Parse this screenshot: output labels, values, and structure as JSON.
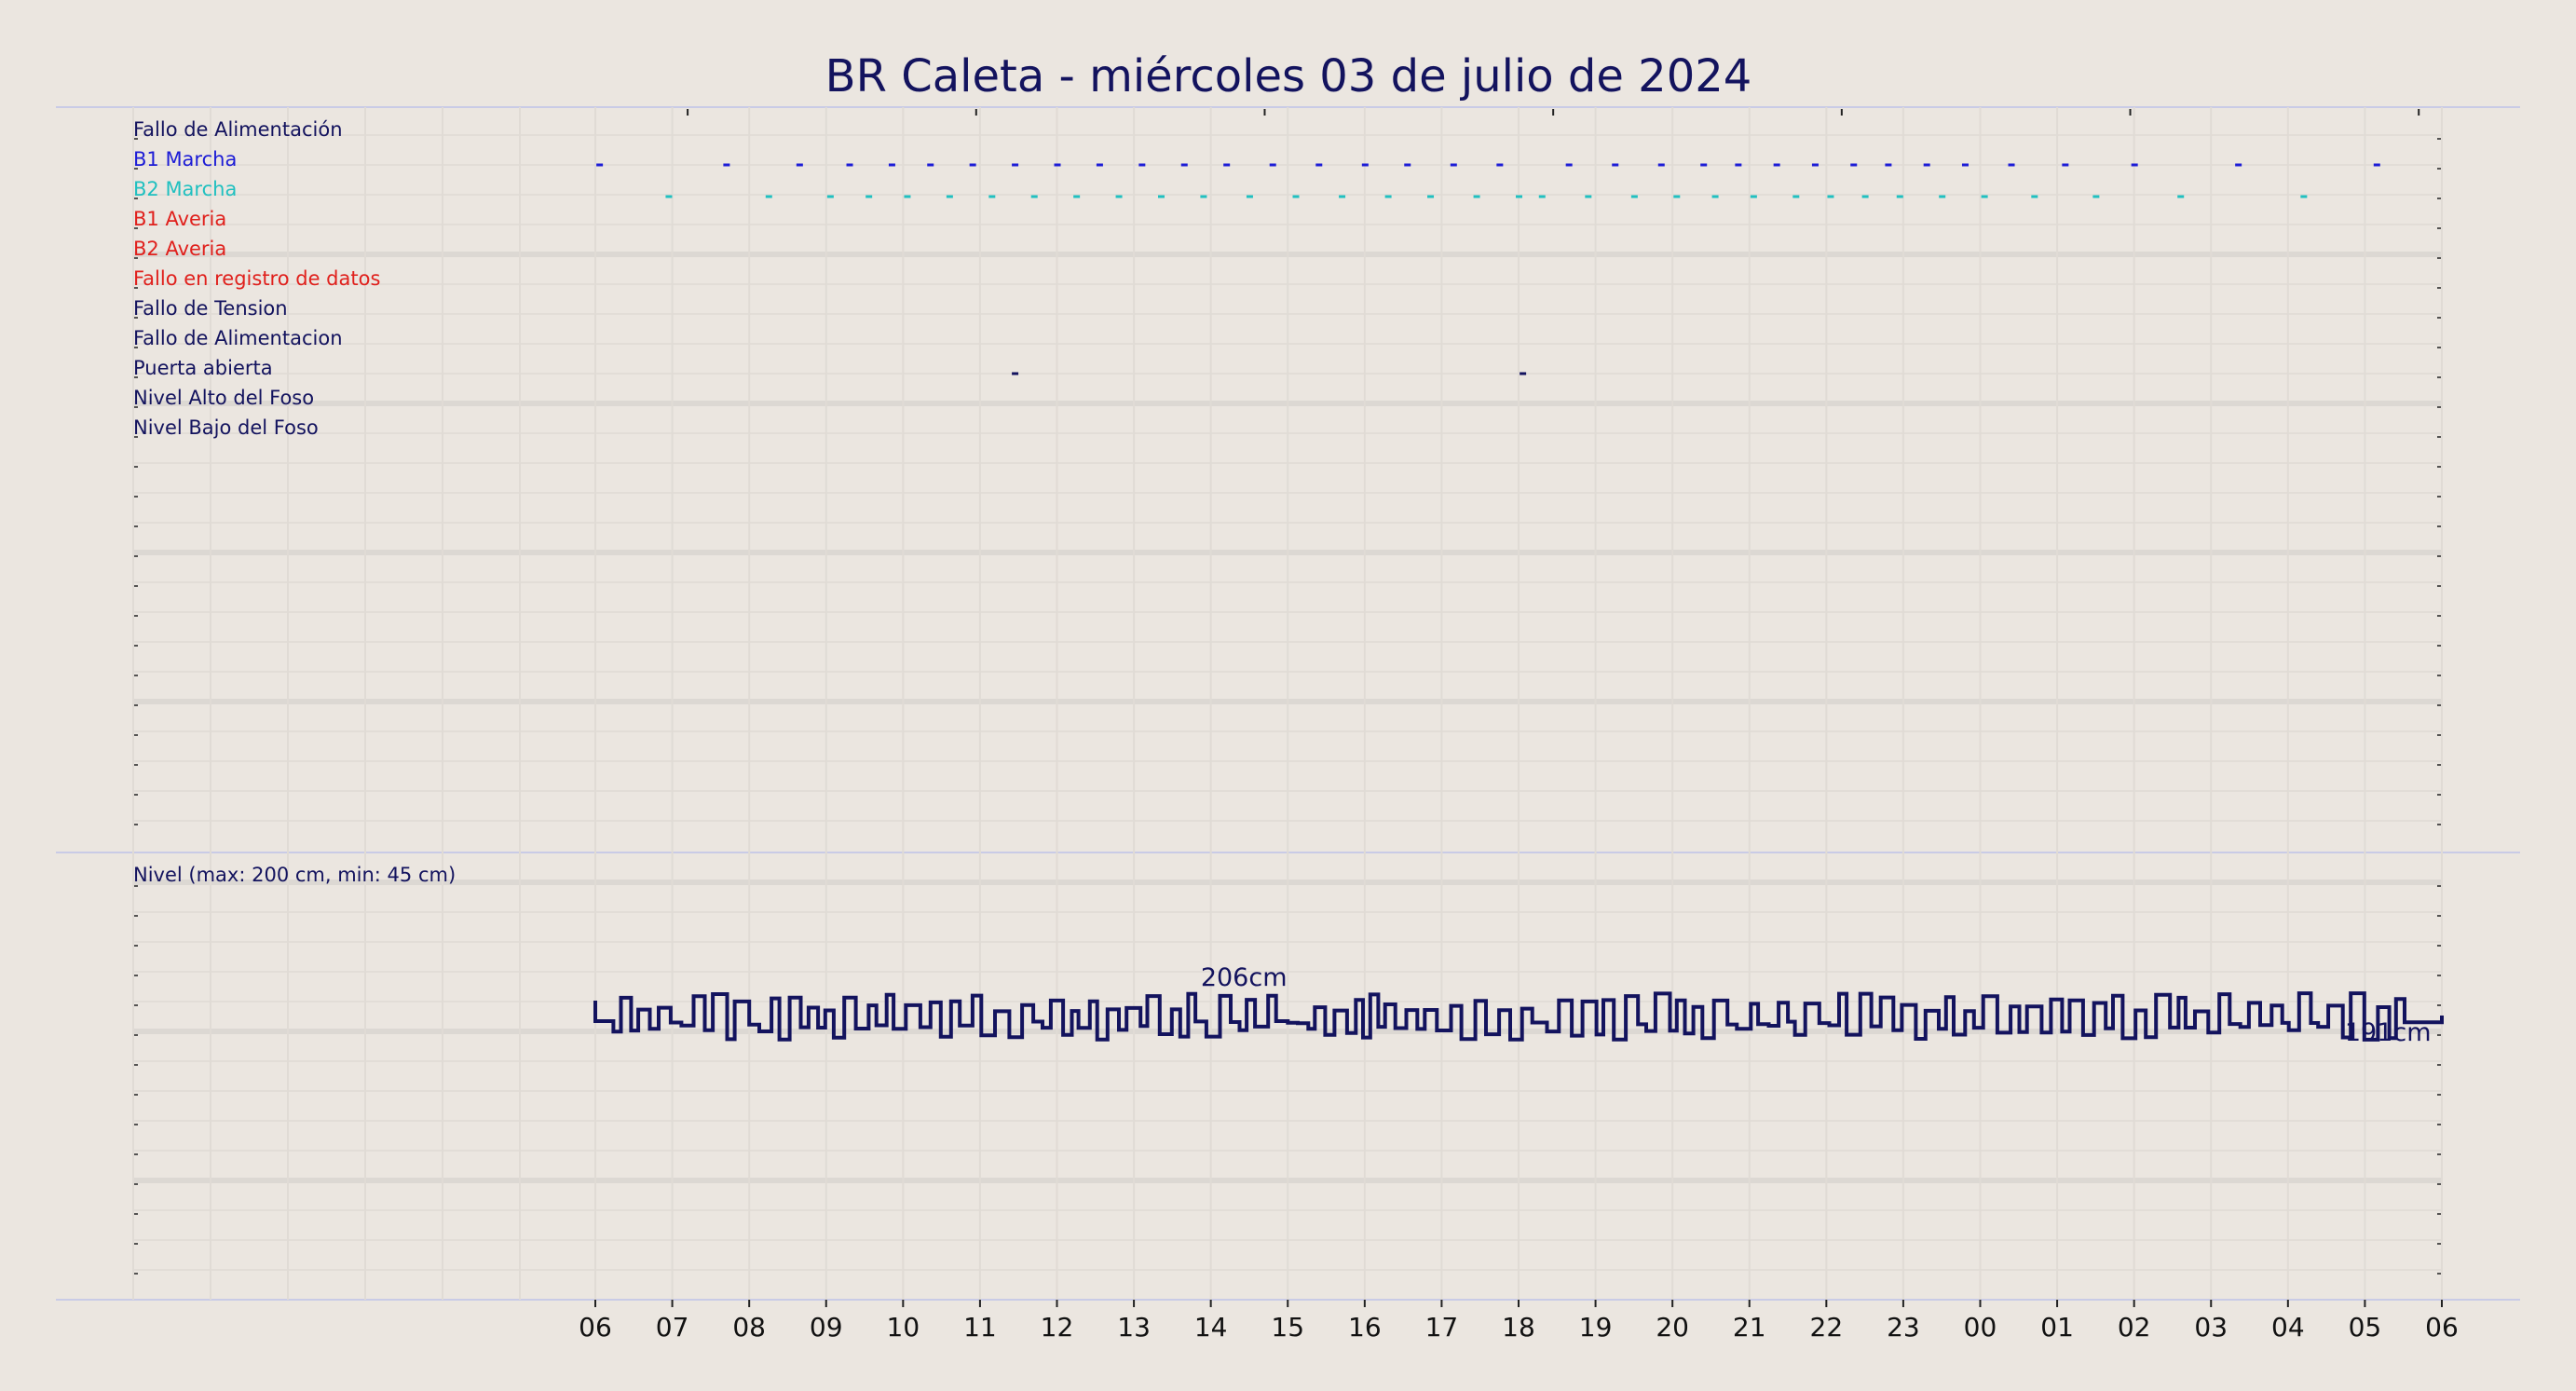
{
  "chart_data": {
    "type": "line",
    "title": "BR Caleta   -   miércoles 03 de julio de 2024",
    "x_ticks": [
      "06",
      "07",
      "08",
      "09",
      "10",
      "11",
      "12",
      "13",
      "14",
      "15",
      "16",
      "17",
      "18",
      "19",
      "20",
      "21",
      "22",
      "23",
      "00",
      "01",
      "02",
      "03",
      "04",
      "05",
      "06"
    ],
    "xlim_hours": [
      0,
      24
    ],
    "grid": true,
    "event_panel": {
      "rows": [
        {
          "label": "Fallo de Alimentación",
          "color": "#13135e"
        },
        {
          "label": "B1 Marcha",
          "color": "#1c1cd6"
        },
        {
          "label": "B2 Marcha",
          "color": "#20c0c0"
        },
        {
          "label": "B1 Averia",
          "color": "#e0201c"
        },
        {
          "label": "B2 Averia",
          "color": "#e0201c"
        },
        {
          "label": "Fallo en registro de datos",
          "color": "#e0201c"
        },
        {
          "label": "Fallo de Tension",
          "color": "#13135e"
        },
        {
          "label": "Fallo de Alimentacion",
          "color": "#13135e"
        },
        {
          "label": "Puerta abierta",
          "color": "#13135e"
        },
        {
          "label": "Nivel Alto del Foso",
          "color": "#13135e"
        },
        {
          "label": "Nivel Bajo del Foso",
          "color": "#13135e"
        }
      ],
      "events": {
        "B1 Marcha": [
          0.05,
          1.7,
          2.65,
          3.3,
          3.85,
          4.35,
          4.9,
          5.45,
          6.0,
          6.55,
          7.1,
          7.65,
          8.2,
          8.8,
          9.4,
          10.0,
          10.55,
          11.15,
          11.75,
          12.65,
          13.25,
          13.85,
          14.4,
          14.85,
          15.35,
          15.85,
          16.35,
          16.8,
          17.3,
          17.8,
          18.4,
          19.1,
          20.0,
          21.35,
          23.15
        ],
        "B2 Marcha": [
          0.95,
          2.25,
          3.05,
          3.55,
          4.05,
          4.6,
          5.15,
          5.7,
          6.25,
          6.8,
          7.35,
          7.9,
          8.5,
          9.1,
          9.7,
          10.3,
          10.85,
          11.45,
          12.0,
          12.3,
          12.9,
          13.5,
          14.05,
          14.55,
          15.05,
          15.6,
          16.05,
          16.5,
          16.95,
          17.5,
          18.05,
          18.7,
          19.5,
          20.6,
          22.2
        ],
        "Puerta abierta": [
          5.45,
          12.05
        ]
      }
    },
    "level_panel": {
      "label": "Nivel (max: 200 cm, min: 45 cm)",
      "color": "#13135e",
      "annotations": [
        {
          "text": "206cm",
          "x": 8.43
        },
        {
          "text": "191cm",
          "x": 23.3
        }
      ]
    }
  }
}
